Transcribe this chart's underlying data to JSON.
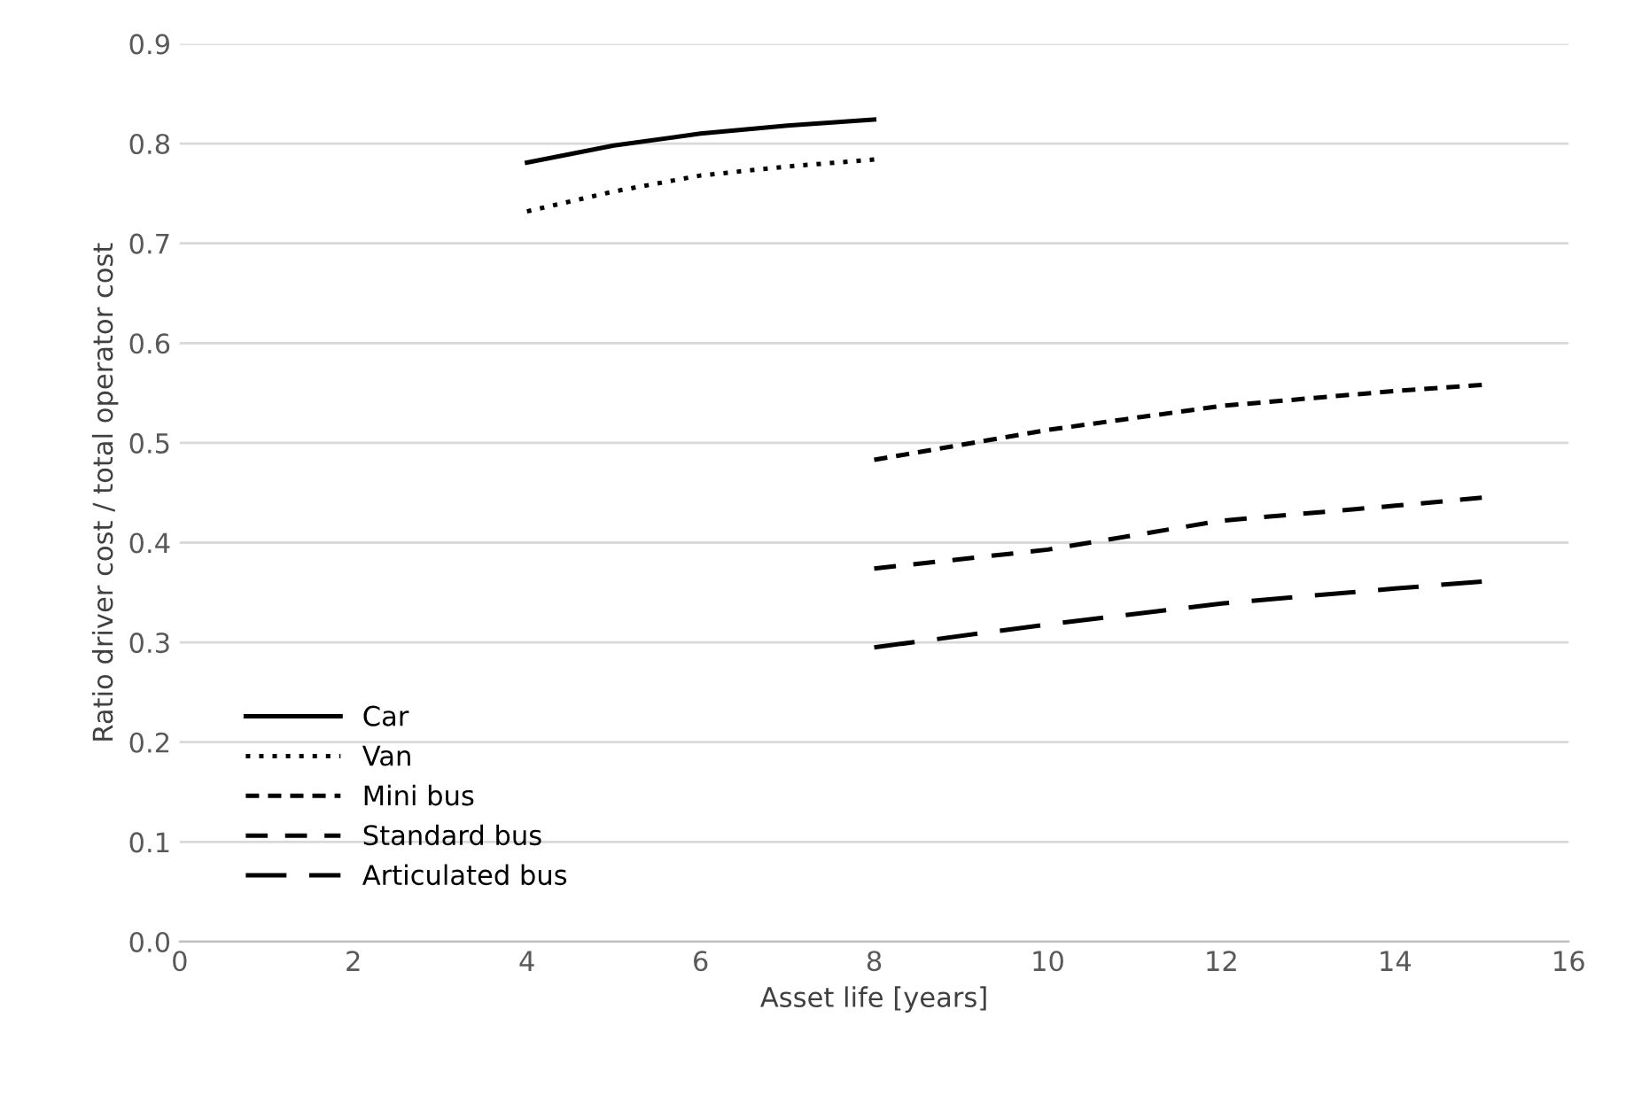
{
  "chart_data": {
    "type": "line",
    "xlabel": "Asset life [years]",
    "ylabel": "Ratio driver cost / total operator cost",
    "xlim": [
      0,
      16
    ],
    "xticks": [
      0,
      2,
      4,
      6,
      8,
      10,
      12,
      14,
      16
    ],
    "ylim": [
      0,
      0.9
    ],
    "yticks": [
      {
        "value": 0,
        "label": "0.0"
      },
      0.1,
      0.2,
      0.3,
      0.4,
      0.5,
      0.6,
      0.7,
      0.8,
      0.9
    ],
    "grid": "y",
    "legend": "bottom left",
    "marker": "none",
    "series": [
      {
        "name": "Car",
        "color": "#000000",
        "line_style": "solid",
        "x": [
          4,
          5,
          6,
          7,
          8
        ],
        "values": [
          0.781,
          0.798,
          0.81,
          0.818,
          0.824
        ]
      },
      {
        "name": "Van",
        "color": "#000000",
        "line_style": "dotted",
        "x": [
          4,
          5,
          6,
          7,
          8
        ],
        "values": [
          0.732,
          0.752,
          0.768,
          0.777,
          0.784
        ]
      },
      {
        "name": "Mini bus",
        "color": "#000000",
        "line_style": "dashed",
        "x": [
          8,
          10,
          12,
          14,
          15
        ],
        "values": [
          0.483,
          0.513,
          0.537,
          0.552,
          0.558
        ]
      },
      {
        "name": "Standard bus",
        "color": "#000000",
        "line_style": "dashed",
        "x": [
          8,
          10,
          12,
          14,
          15
        ],
        "values": [
          0.374,
          0.393,
          0.422,
          0.437,
          0.445
        ]
      },
      {
        "name": "Articulated bus",
        "color": "#000000",
        "line_style": "dashed",
        "x": [
          8,
          10,
          12,
          14,
          15
        ],
        "values": [
          0.295,
          0.318,
          0.339,
          0.354,
          0.361
        ]
      }
    ]
  }
}
